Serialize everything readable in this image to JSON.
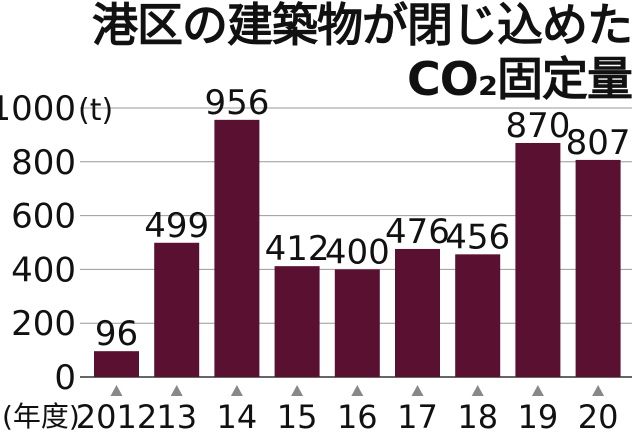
{
  "title_lines": [
    "港区の建築物が閉じ込めた",
    "CO₂固定量"
  ],
  "chart_data": {
    "type": "bar",
    "title": "港区の建築物が閉じ込めたCO₂固定量",
    "categories": [
      "2012",
      "13",
      "14",
      "15",
      "16",
      "17",
      "18",
      "19",
      "20"
    ],
    "values": [
      96,
      499,
      956,
      412,
      400,
      476,
      456,
      870,
      807
    ],
    "y_unit": "(t)",
    "x_unit": "(年度)",
    "yticks": [
      0,
      200,
      400,
      600,
      800,
      1000
    ],
    "ylim": [
      0,
      1000
    ],
    "grid": true,
    "bar_color": "#5a1030"
  }
}
